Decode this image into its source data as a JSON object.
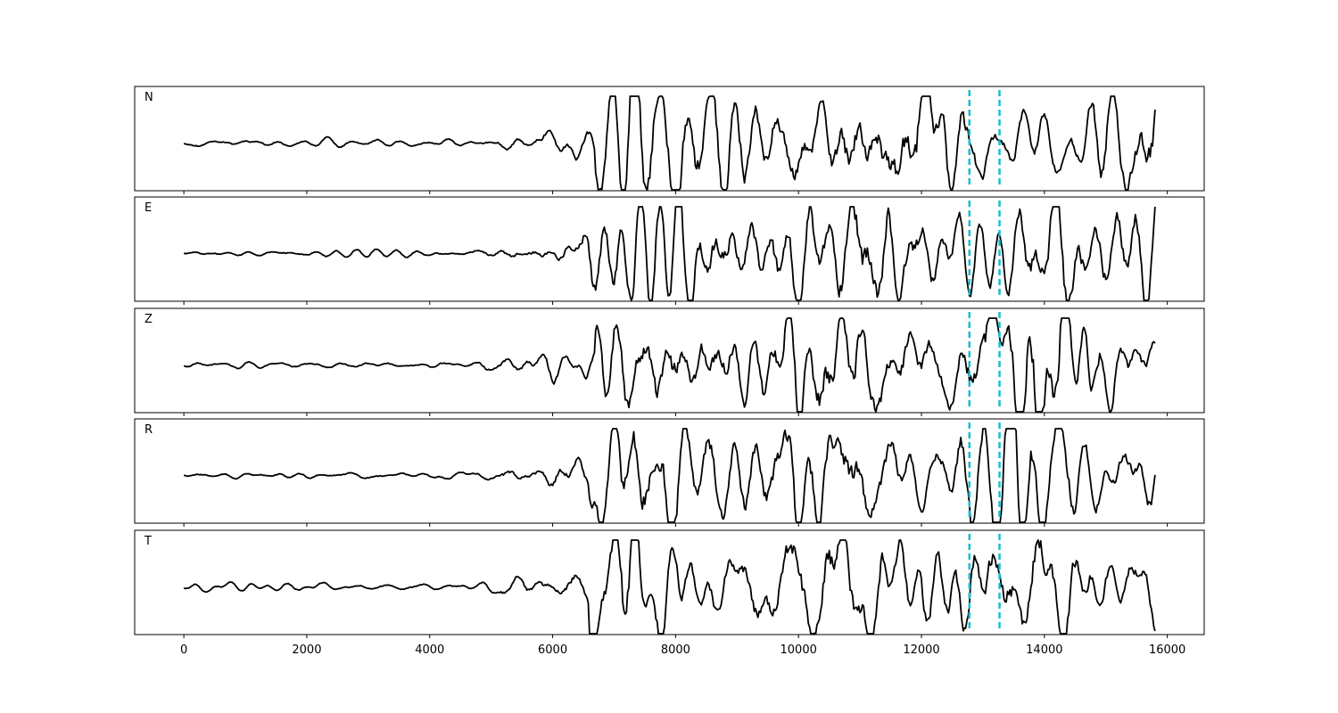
{
  "chart_data": {
    "type": "line",
    "title": "",
    "xlabel": "",
    "ylabel": "",
    "xlim": [
      -800,
      16600
    ],
    "x_ticks": [
      0,
      2000,
      4000,
      6000,
      8000,
      10000,
      12000,
      14000,
      16000
    ],
    "x_tick_labels": [
      "0",
      "2000",
      "4000",
      "6000",
      "8000",
      "10000",
      "12000",
      "14000",
      "16000"
    ],
    "x_range": [
      0,
      15800
    ],
    "grid": false,
    "shared_x": true,
    "markers": {
      "style": "dashed",
      "color": "#17becf",
      "x": [
        12780,
        13270
      ]
    },
    "line_color": "#000000",
    "series": [
      {
        "name": "N",
        "noise_end": 4600,
        "signal_start": 6700,
        "noise_amp": 0.05,
        "signal_amp": 0.82,
        "seed": 11
      },
      {
        "name": "E",
        "noise_end": 4600,
        "signal_start": 6500,
        "noise_amp": 0.05,
        "signal_amp": 0.8,
        "seed": 23
      },
      {
        "name": "Z",
        "noise_end": 4500,
        "signal_start": 6700,
        "noise_amp": 0.05,
        "signal_amp": 0.85,
        "seed": 37
      },
      {
        "name": "R",
        "noise_end": 4600,
        "signal_start": 6600,
        "noise_amp": 0.05,
        "signal_amp": 0.82,
        "seed": 41
      },
      {
        "name": "T",
        "noise_end": 4600,
        "signal_start": 6600,
        "noise_amp": 0.05,
        "signal_amp": 0.82,
        "seed": 53
      }
    ]
  }
}
